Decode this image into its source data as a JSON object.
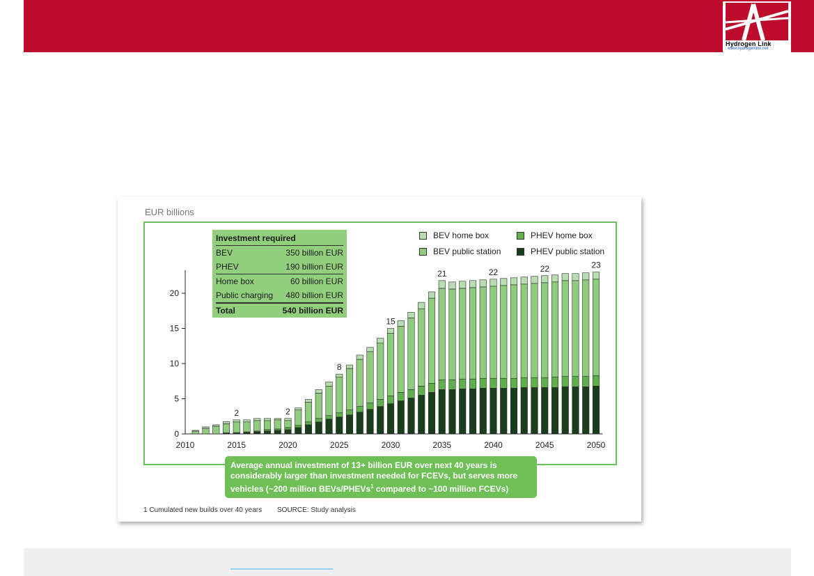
{
  "logo": {
    "name": "Hydrogen Link",
    "url": "www.hydrogenlink.net"
  },
  "unit_label": "EUR billions",
  "investment_box": {
    "title": "Investment required",
    "rows": [
      {
        "label": "BEV",
        "value": "350 billion EUR"
      },
      {
        "label": "PHEV",
        "value": "190 billion EUR"
      },
      {
        "label": "Home box",
        "value": "60 billion EUR"
      },
      {
        "label": "Public charging",
        "value": "480 billion EUR"
      }
    ],
    "total": {
      "label": "Total",
      "value": "540 billion EUR"
    }
  },
  "legend": [
    {
      "label": "BEV home box",
      "color": "#b8ddb0"
    },
    {
      "label": "PHEV home box",
      "color": "#5fb04c"
    },
    {
      "label": "BEV public station",
      "color": "#8fcc7e"
    },
    {
      "label": "PHEV public station",
      "color": "#1a3d1c"
    }
  ],
  "callout": {
    "line1": "Average annual investment of 13+ billion EUR over next 40 years is",
    "line2": "considerably larger than investment needed for FCEVs, but serves more",
    "line3a": "vehicles (~200 million BEVs/PHEVs",
    "line3sup": "1",
    "line3b": " compared to ~100 million FCEVs)"
  },
  "footnote": "1 Cumulated new builds over 40 years",
  "source": "SOURCE: Study analysis",
  "chart_data": {
    "type": "bar",
    "stacked": true,
    "ylabel": "EUR billions",
    "ylim": [
      0,
      23
    ],
    "yticks": [
      0,
      5,
      10,
      15,
      20
    ],
    "xticks": [
      2010,
      2015,
      2020,
      2025,
      2030,
      2035,
      2040,
      2045,
      2050
    ],
    "categories": [
      2010,
      2011,
      2012,
      2013,
      2014,
      2015,
      2016,
      2017,
      2018,
      2019,
      2020,
      2021,
      2022,
      2023,
      2024,
      2025,
      2026,
      2027,
      2028,
      2029,
      2030,
      2031,
      2032,
      2033,
      2034,
      2035,
      2036,
      2037,
      2038,
      2039,
      2040,
      2041,
      2042,
      2043,
      2044,
      2045,
      2046,
      2047,
      2048,
      2049,
      2050
    ],
    "series": [
      {
        "name": "PHEV public station",
        "values": [
          0,
          0,
          0,
          0,
          0.1,
          0.1,
          0.2,
          0.3,
          0.4,
          0.5,
          0.6,
          0.9,
          1.3,
          1.7,
          2.1,
          2.4,
          2.7,
          3.1,
          3.5,
          3.9,
          4.3,
          4.7,
          5.1,
          5.5,
          5.9,
          6.3,
          6.3,
          6.4,
          6.4,
          6.5,
          6.5,
          6.5,
          6.5,
          6.6,
          6.6,
          6.6,
          6.6,
          6.7,
          6.7,
          6.7,
          6.8
        ]
      },
      {
        "name": "PHEV home box",
        "values": [
          0,
          0,
          0,
          0,
          0.05,
          0.1,
          0.1,
          0.1,
          0.2,
          0.2,
          0.3,
          0.3,
          0.4,
          0.5,
          0.5,
          0.6,
          0.7,
          0.8,
          0.9,
          1.0,
          1.1,
          1.2,
          1.2,
          1.3,
          1.3,
          1.4,
          1.4,
          1.4,
          1.4,
          1.4,
          1.4,
          1.4,
          1.4,
          1.4,
          1.4,
          1.4,
          1.5,
          1.5,
          1.5,
          1.5,
          1.5
        ]
      },
      {
        "name": "BEV public station",
        "values": [
          0,
          0.4,
          0.8,
          1.1,
          1.3,
          1.5,
          1.4,
          1.5,
          1.3,
          1.3,
          1.0,
          2.2,
          2.8,
          3.6,
          4.2,
          5.1,
          5.9,
          6.7,
          7.3,
          8.0,
          8.9,
          9.4,
          10.2,
          11.0,
          12.1,
          13.0,
          12.9,
          12.9,
          13.0,
          13.0,
          13.1,
          13.2,
          13.3,
          13.3,
          13.4,
          13.5,
          13.5,
          13.6,
          13.6,
          13.7,
          13.7
        ]
      },
      {
        "name": "BEV home box",
        "values": [
          0,
          0.1,
          0.2,
          0.2,
          0.3,
          0.3,
          0.3,
          0.3,
          0.3,
          0.2,
          0.3,
          0.3,
          0.4,
          0.5,
          0.6,
          0.4,
          0.5,
          0.6,
          0.6,
          0.7,
          0.7,
          0.8,
          0.8,
          0.9,
          0.9,
          1.1,
          1.0,
          1.0,
          1.0,
          1.0,
          1.0,
          1.0,
          1.0,
          1.0,
          1.0,
          1.0,
          1.0,
          1.0,
          1.0,
          1.0,
          1.0
        ]
      }
    ],
    "annotations": [
      {
        "x": 2015,
        "label": "2"
      },
      {
        "x": 2020,
        "label": "2"
      },
      {
        "x": 2025,
        "label": "8"
      },
      {
        "x": 2030,
        "label": "15"
      },
      {
        "x": 2035,
        "label": "21"
      },
      {
        "x": 2040,
        "label": "22"
      },
      {
        "x": 2045,
        "label": "22"
      },
      {
        "x": 2050,
        "label": "23"
      }
    ]
  }
}
